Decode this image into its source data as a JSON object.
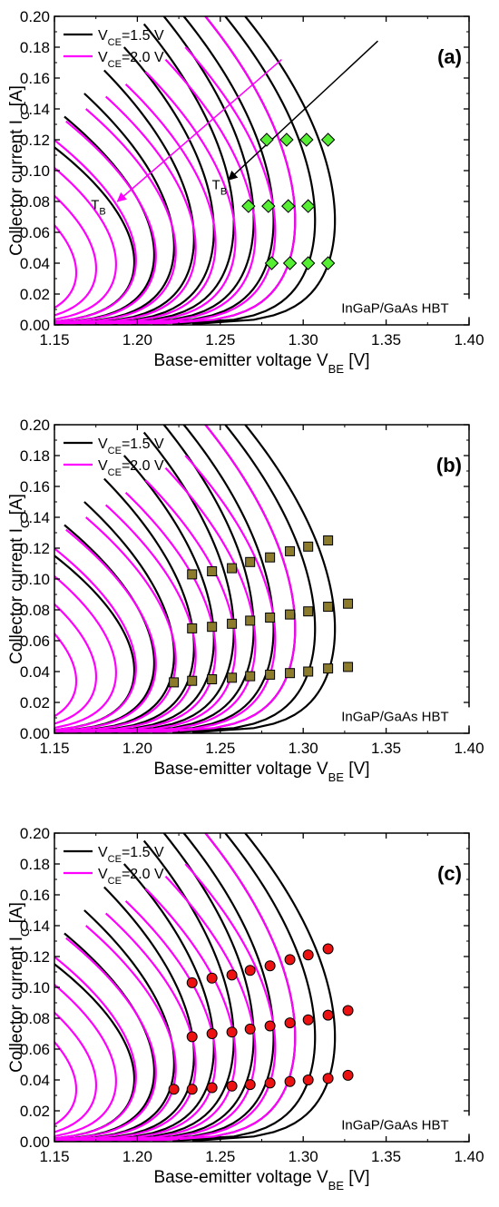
{
  "chart_data": [
    {
      "type": "line",
      "panel_label": "(a)",
      "xlabel": "Base-emitter voltage V",
      "xlabel_sub": "BE",
      "xlabel_unit": " [V]",
      "ylabel": "Collector current I",
      "ylabel_sub": "C",
      "ylabel_unit": " [A]",
      "xlim": [
        1.15,
        1.4
      ],
      "ylim": [
        0.0,
        0.2
      ],
      "xticks": [
        "1.15",
        "1.20",
        "1.25",
        "1.30",
        "1.35",
        "1.40"
      ],
      "yticks": [
        "0.00",
        "0.02",
        "0.04",
        "0.06",
        "0.08",
        "0.10",
        "0.12",
        "0.14",
        "0.16",
        "0.18",
        "0.20"
      ],
      "legend": {
        "placement": "top-left",
        "entries": [
          {
            "prefix": "V",
            "sub": "CE",
            "suffix": "=1.5 V",
            "color": "#000000"
          },
          {
            "prefix": "V",
            "sub": "CE",
            "suffix": "=2.0 V",
            "color": "#ff00ff"
          }
        ]
      },
      "annotation": "InGaP/GaAs HBT",
      "arrow_labels": [
        {
          "prefix": "T",
          "sub": "B"
        },
        {
          "prefix": "T",
          "sub": "B"
        }
      ],
      "series": [
        {
          "group": "VCE=1.5 V",
          "color": "#000000",
          "peak_vbe": [
            1.229,
            1.241,
            1.253,
            1.265,
            1.277,
            1.289,
            1.301,
            1.313,
            1.326,
            1.338,
            1.35
          ],
          "peak_ic": [
            0.12,
            0.135,
            0.15,
            0.165,
            0.18,
            0.195,
            0.2,
            0.2,
            0.2,
            0.2,
            0.2
          ]
        },
        {
          "group": "VCE=2.0 V",
          "color": "#ff00ff",
          "peak_vbe": [
            1.194,
            1.206,
            1.218,
            1.23,
            1.242,
            1.254,
            1.266,
            1.278,
            1.29,
            1.302,
            1.314,
            1.326
          ],
          "peak_ic": [
            0.1,
            0.108,
            0.116,
            0.124,
            0.132,
            0.14,
            0.148,
            0.156,
            0.164,
            0.172,
            0.18,
            0.2
          ]
        }
      ],
      "markers": {
        "shape": "diamond",
        "color": "#55ee33",
        "points": [
          [
            1.278,
            0.12
          ],
          [
            1.29,
            0.12
          ],
          [
            1.302,
            0.12
          ],
          [
            1.315,
            0.12
          ],
          [
            1.267,
            0.077
          ],
          [
            1.279,
            0.077
          ],
          [
            1.291,
            0.077
          ],
          [
            1.303,
            0.077
          ],
          [
            1.281,
            0.04
          ],
          [
            1.292,
            0.04
          ],
          [
            1.303,
            0.04
          ],
          [
            1.315,
            0.04
          ]
        ]
      }
    },
    {
      "type": "line",
      "panel_label": "(b)",
      "xlabel": "Base-emitter voltage V",
      "xlabel_sub": "BE",
      "xlabel_unit": " [V]",
      "ylabel": "Collector current I",
      "ylabel_sub": "C",
      "ylabel_unit": " [A]",
      "xlim": [
        1.15,
        1.4
      ],
      "ylim": [
        0.0,
        0.2
      ],
      "xticks": [
        "1.15",
        "1.20",
        "1.25",
        "1.30",
        "1.35",
        "1.40"
      ],
      "yticks": [
        "0.00",
        "0.02",
        "0.04",
        "0.06",
        "0.08",
        "0.10",
        "0.12",
        "0.14",
        "0.16",
        "0.18",
        "0.20"
      ],
      "legend": {
        "placement": "top-left",
        "entries": [
          {
            "prefix": "V",
            "sub": "CE",
            "suffix": "=1.5 V",
            "color": "#000000"
          },
          {
            "prefix": "V",
            "sub": "CE",
            "suffix": "=2.0 V",
            "color": "#ff00ff"
          }
        ]
      },
      "annotation": "InGaP/GaAs HBT",
      "series": [
        {
          "group": "VCE=1.5 V",
          "color": "#000000",
          "peak_vbe": [
            1.229,
            1.241,
            1.253,
            1.265,
            1.277,
            1.289,
            1.301,
            1.313,
            1.326,
            1.338,
            1.35
          ],
          "peak_ic": [
            0.12,
            0.135,
            0.15,
            0.165,
            0.18,
            0.195,
            0.2,
            0.2,
            0.2,
            0.2,
            0.2
          ]
        },
        {
          "group": "VCE=2.0 V",
          "color": "#ff00ff",
          "peak_vbe": [
            1.194,
            1.206,
            1.218,
            1.23,
            1.242,
            1.254,
            1.266,
            1.278,
            1.29,
            1.302,
            1.314,
            1.326
          ],
          "peak_ic": [
            0.1,
            0.108,
            0.116,
            0.124,
            0.132,
            0.14,
            0.148,
            0.156,
            0.164,
            0.172,
            0.18,
            0.2
          ]
        }
      ],
      "markers": {
        "shape": "square",
        "color": "#8b7b2b",
        "points": [
          [
            1.233,
            0.103
          ],
          [
            1.245,
            0.105
          ],
          [
            1.257,
            0.107
          ],
          [
            1.268,
            0.111
          ],
          [
            1.28,
            0.114
          ],
          [
            1.292,
            0.118
          ],
          [
            1.303,
            0.121
          ],
          [
            1.315,
            0.125
          ],
          [
            1.233,
            0.068
          ],
          [
            1.245,
            0.069
          ],
          [
            1.257,
            0.071
          ],
          [
            1.268,
            0.073
          ],
          [
            1.28,
            0.075
          ],
          [
            1.292,
            0.077
          ],
          [
            1.303,
            0.079
          ],
          [
            1.315,
            0.082
          ],
          [
            1.327,
            0.084
          ],
          [
            1.222,
            0.033
          ],
          [
            1.233,
            0.034
          ],
          [
            1.245,
            0.035
          ],
          [
            1.257,
            0.036
          ],
          [
            1.268,
            0.037
          ],
          [
            1.28,
            0.038
          ],
          [
            1.292,
            0.039
          ],
          [
            1.303,
            0.04
          ],
          [
            1.315,
            0.042
          ],
          [
            1.327,
            0.043
          ]
        ]
      }
    },
    {
      "type": "line",
      "panel_label": "(c)",
      "xlabel": "Base-emitter voltage V",
      "xlabel_sub": "BE",
      "xlabel_unit": " [V]",
      "ylabel": "Collector current I",
      "ylabel_sub": "C",
      "ylabel_unit": " [A]",
      "xlim": [
        1.15,
        1.4
      ],
      "ylim": [
        0.0,
        0.2
      ],
      "xticks": [
        "1.15",
        "1.20",
        "1.25",
        "1.30",
        "1.35",
        "1.40"
      ],
      "yticks": [
        "0.00",
        "0.02",
        "0.04",
        "0.06",
        "0.08",
        "0.10",
        "0.12",
        "0.14",
        "0.16",
        "0.18",
        "0.20"
      ],
      "legend": {
        "placement": "top-left",
        "entries": [
          {
            "prefix": "V",
            "sub": "CE",
            "suffix": "=1.5 V",
            "color": "#000000"
          },
          {
            "prefix": "V",
            "sub": "CE",
            "suffix": "=2.0 V",
            "color": "#ff00ff"
          }
        ]
      },
      "annotation": "InGaP/GaAs HBT",
      "series": [
        {
          "group": "VCE=1.5 V",
          "color": "#000000",
          "peak_vbe": [
            1.229,
            1.241,
            1.253,
            1.265,
            1.277,
            1.289,
            1.301,
            1.313,
            1.326,
            1.338,
            1.35
          ],
          "peak_ic": [
            0.12,
            0.135,
            0.15,
            0.165,
            0.18,
            0.195,
            0.2,
            0.2,
            0.2,
            0.2,
            0.2
          ]
        },
        {
          "group": "VCE=2.0 V",
          "color": "#ff00ff",
          "peak_vbe": [
            1.194,
            1.206,
            1.218,
            1.23,
            1.242,
            1.254,
            1.266,
            1.278,
            1.29,
            1.302,
            1.314,
            1.326
          ],
          "peak_ic": [
            0.1,
            0.108,
            0.116,
            0.124,
            0.132,
            0.14,
            0.148,
            0.156,
            0.164,
            0.172,
            0.18,
            0.2
          ]
        }
      ],
      "markers": {
        "shape": "circle",
        "color": "#ee1111",
        "points": [
          [
            1.233,
            0.103
          ],
          [
            1.245,
            0.106
          ],
          [
            1.257,
            0.108
          ],
          [
            1.268,
            0.111
          ],
          [
            1.28,
            0.114
          ],
          [
            1.292,
            0.118
          ],
          [
            1.303,
            0.121
          ],
          [
            1.315,
            0.125
          ],
          [
            1.233,
            0.068
          ],
          [
            1.245,
            0.07
          ],
          [
            1.257,
            0.071
          ],
          [
            1.268,
            0.073
          ],
          [
            1.28,
            0.075
          ],
          [
            1.292,
            0.077
          ],
          [
            1.303,
            0.079
          ],
          [
            1.315,
            0.082
          ],
          [
            1.327,
            0.085
          ],
          [
            1.222,
            0.034
          ],
          [
            1.233,
            0.034
          ],
          [
            1.245,
            0.035
          ],
          [
            1.257,
            0.036
          ],
          [
            1.268,
            0.037
          ],
          [
            1.28,
            0.038
          ],
          [
            1.292,
            0.039
          ],
          [
            1.303,
            0.04
          ],
          [
            1.315,
            0.041
          ],
          [
            1.327,
            0.043
          ]
        ]
      }
    }
  ]
}
